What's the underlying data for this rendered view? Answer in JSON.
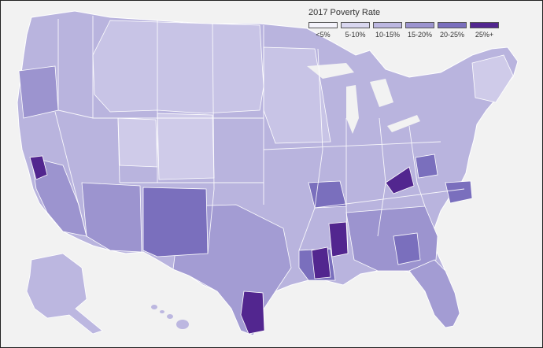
{
  "legend": {
    "title": "2017 Poverty Rate",
    "items": [
      {
        "label": "<5%",
        "color": "#f4f3fb"
      },
      {
        "label": "5-10%",
        "color": "#d9d7ef"
      },
      {
        "label": "10-15%",
        "color": "#bcb7e0"
      },
      {
        "label": "15-20%",
        "color": "#9c94cf"
      },
      {
        "label": "20-25%",
        "color": "#7a6fbd"
      },
      {
        "label": "25%+",
        "color": "#52268f"
      }
    ]
  },
  "colors": {
    "background": "#f2f2f2",
    "land_base": "#b9b4de",
    "borders": "#ffffff"
  }
}
